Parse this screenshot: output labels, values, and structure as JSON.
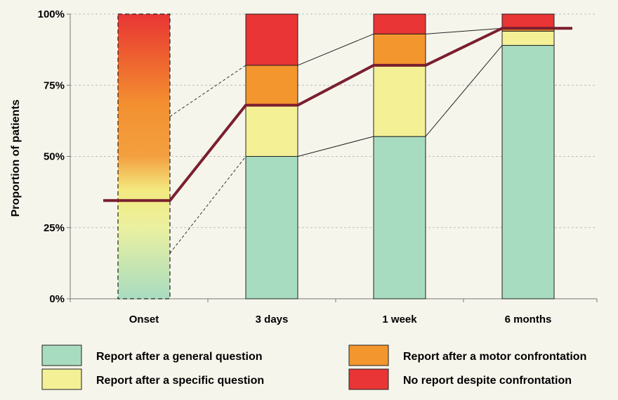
{
  "chart_data": {
    "type": "bar",
    "stacked": true,
    "title": "",
    "xlabel": "",
    "ylabel": "Proportion of patients",
    "ylim": [
      0,
      100
    ],
    "y_tick_labels": [
      "0%",
      "25%",
      "50%",
      "75%",
      "100%"
    ],
    "y_ticks": [
      0,
      25,
      50,
      75,
      100
    ],
    "grid": true,
    "categories": [
      "Onset",
      "3 days",
      "1 week",
      "6 months"
    ],
    "series": [
      {
        "name": "Report after a general question",
        "color": "#a8dcc0",
        "values": [
          null,
          50,
          57,
          89
        ]
      },
      {
        "name": "Report after a specific question",
        "color": "#f3f096",
        "values": [
          null,
          18,
          25,
          5
        ]
      },
      {
        "name": "Report after a motor confrontation",
        "color": "#f3962e",
        "values": [
          null,
          14,
          11,
          1
        ]
      },
      {
        "name": "No report despite confrontation",
        "color": "#e93535",
        "values": [
          null,
          18,
          7,
          5
        ]
      }
    ],
    "onset_bar": {
      "style": "dashed",
      "fill": "gradient",
      "total": 100
    },
    "cumulative_line": {
      "color": "#7a1f2e",
      "values": [
        34.5,
        68,
        82,
        95
      ]
    },
    "legend_position": "bottom"
  }
}
